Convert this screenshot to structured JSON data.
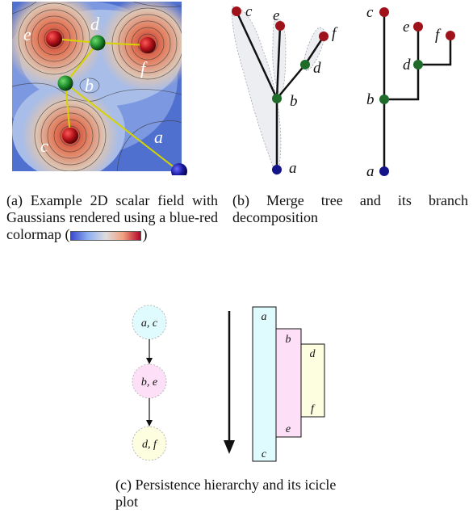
{
  "panel_a": {
    "labels": {
      "a": "a",
      "b": "b",
      "c": "c",
      "d": "d",
      "e": "e",
      "f": "f"
    },
    "caption_prefix": "(a) Example 2D scalar field with Gaussians rendered using a blue-red colormap (",
    "caption_suffix": ")"
  },
  "panel_b": {
    "labels": {
      "a": "a",
      "b": "b",
      "c": "c",
      "d": "d",
      "e": "e",
      "f": "f"
    },
    "caption": "(b) Merge tree and its branch decomposition"
  },
  "panel_c": {
    "hierarchy": [
      "a, c",
      "b, e",
      "d, f"
    ],
    "icicle": {
      "col1_top": "a",
      "col1_bottom": "c",
      "col2_top": "b",
      "col2_bottom": "e",
      "col3_top": "d",
      "col3_bottom": "f"
    },
    "caption": "(c) Persistence hierarchy and its icicle plot"
  },
  "colors": {
    "max_node": "#a0121a",
    "saddle_node": "#1f6b2a",
    "min_node": "#14148a",
    "col_ac": "#e0fbfd",
    "col_be": "#fde0f7",
    "col_df": "#fdfde0",
    "branch_link": "#d6d400"
  }
}
